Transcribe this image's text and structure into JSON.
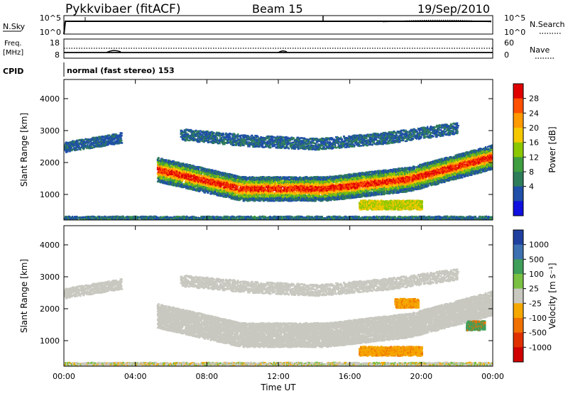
{
  "header": {
    "station": "Pykkvibaer (fitACF)",
    "beam": "Beam 15",
    "date": "19/Sep/2010"
  },
  "side_labels": {
    "nsky": "N.Sky",
    "freq_line1": "Freq.",
    "freq_line2": "[MHz]",
    "cpid": "CPID",
    "nsearch": "N.Search",
    "nave": "Nave"
  },
  "top_panels": {
    "nsky_ticks": [
      "10^5",
      "10^0"
    ],
    "nsearch_ticks": [
      "10^5",
      "10^0"
    ],
    "freq_ticks": [
      "18",
      "8"
    ],
    "nave_ticks": [
      "60",
      "0"
    ],
    "cpid_text": "normal (fast stereo) 153"
  },
  "chart_data": [
    {
      "type": "heatmap",
      "name_role": "power",
      "ylabel": "Slant Range [km]",
      "xlabel": "",
      "ylim": [
        200,
        4600
      ],
      "xlim_hours": [
        0,
        24
      ],
      "yticks": [
        "4000",
        "3000",
        "2000",
        "1000"
      ],
      "ytick_values": [
        4000,
        3000,
        2000,
        1000
      ],
      "colorbar": {
        "label": "Power [dB]",
        "tick_labels": [
          "28",
          "24",
          "20",
          "16",
          "12",
          "8",
          "4"
        ],
        "colors": [
          "#e00000",
          "#ff5000",
          "#ff9a00",
          "#f5c800",
          "#8cc800",
          "#3f9e3f",
          "#2e7d5a",
          "#1f4fa8",
          "#1010e0"
        ]
      },
      "regions": [
        {
          "desc": "main band",
          "hours": [
            5.2,
            24
          ],
          "center_km": [
            1800,
            1200,
            1200,
            1500,
            2200
          ],
          "level": "high"
        },
        {
          "desc": "upper band",
          "hours": [
            6.5,
            22
          ],
          "center_km": [
            2900,
            2700,
            2600,
            2800,
            3100
          ],
          "level": "low"
        },
        {
          "desc": "early echoes",
          "hours": [
            0,
            3.2
          ],
          "center_km": [
            2500,
            2650,
            2800
          ],
          "level": "low"
        },
        {
          "desc": "near-range clutter",
          "hours": [
            0,
            24
          ],
          "center_km": [
            250
          ],
          "level": "low"
        }
      ]
    },
    {
      "type": "heatmap",
      "name_role": "velocity",
      "ylabel": "Slant Range [km]",
      "xlabel": "Time UT",
      "ylim": [
        200,
        4600
      ],
      "xlim_hours": [
        0,
        24
      ],
      "yticks": [
        "4000",
        "3000",
        "2000",
        "1000"
      ],
      "ytick_values": [
        4000,
        3000,
        2000,
        1000
      ],
      "xticks": [
        "00:00",
        "04:00",
        "08:00",
        "12:00",
        "16:00",
        "20:00",
        "00:00"
      ],
      "xtick_hours": [
        0,
        4,
        8,
        12,
        16,
        20,
        24
      ],
      "colorbar": {
        "label": "Velocity [m s⁻¹]",
        "tick_labels": [
          "1000",
          "500",
          "100",
          "25",
          "-25",
          "-100",
          "-500",
          "-1000"
        ],
        "colors": [
          "#2040a0",
          "#3c70b0",
          "#3f9e5a",
          "#7ac043",
          "#c8c8c0",
          "#f5a800",
          "#f07000",
          "#e03000",
          "#d00000"
        ]
      },
      "regions": [
        {
          "desc": "main band",
          "hours": [
            5.2,
            24
          ],
          "center_km": [
            1800,
            1200,
            1200,
            1500,
            2200
          ],
          "velocity": "-25 to 25"
        },
        {
          "desc": "orange patch",
          "hours": [
            18.5,
            19.8
          ],
          "center_km": [
            2200
          ],
          "velocity": "-100 to -500"
        },
        {
          "desc": "lower orange",
          "hours": [
            16.5,
            20
          ],
          "center_km": [
            700
          ],
          "velocity": "-100 to -500"
        },
        {
          "desc": "green patch",
          "hours": [
            22.5,
            23.5
          ],
          "center_km": [
            1500
          ],
          "velocity": "100 to 500"
        }
      ]
    }
  ],
  "colors": {
    "axis": "#000000",
    "background": "#ffffff",
    "ground_scatter": "#c8c8c0"
  }
}
